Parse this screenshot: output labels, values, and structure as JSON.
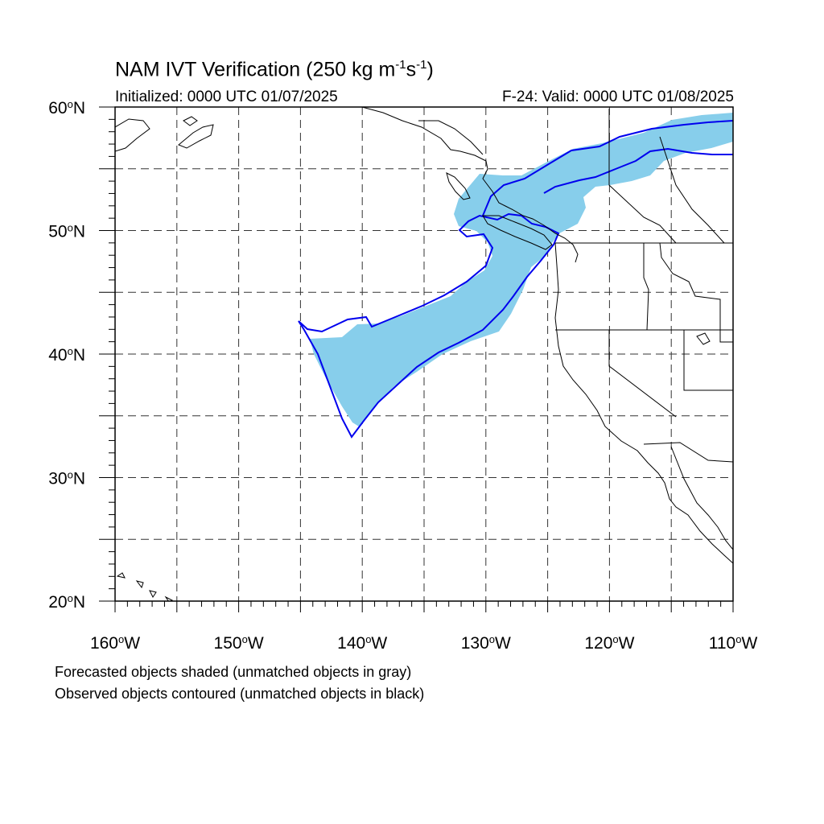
{
  "title": {
    "text": "NAM IVT Verification (250 kg m",
    "exp1": "-1",
    "mid": "s",
    "exp2": "-1",
    "end": ")"
  },
  "subtitle_left": "Initialized: 0000 UTC 01/07/2025",
  "subtitle_right": "F-24: Valid: 0000 UTC 01/08/2025",
  "footer": {
    "line1": "Forecasted objects shaded (unmatched objects in gray)",
    "line2": "Observed objects contoured (unmatched objects in black)"
  },
  "map": {
    "lon_range": [
      -160,
      -110
    ],
    "lat_range": [
      20,
      60
    ],
    "lat_labels": [
      {
        "value": 60,
        "text": "60",
        "suffix": "N"
      },
      {
        "value": 50,
        "text": "50",
        "suffix": "N"
      },
      {
        "value": 40,
        "text": "40",
        "suffix": "N"
      },
      {
        "value": 30,
        "text": "30",
        "suffix": "N"
      },
      {
        "value": 20,
        "text": "20",
        "suffix": "N"
      }
    ],
    "lon_labels": [
      {
        "value": -160,
        "text": "160",
        "suffix": "W"
      },
      {
        "value": -150,
        "text": "150",
        "suffix": "W"
      },
      {
        "value": -140,
        "text": "140",
        "suffix": "W"
      },
      {
        "value": -130,
        "text": "130",
        "suffix": "W"
      },
      {
        "value": -120,
        "text": "120",
        "suffix": "W"
      },
      {
        "value": -110,
        "text": "110",
        "suffix": "W"
      }
    ],
    "forecast_fill_color": "#87ceeb",
    "observed_contour_color": "#0000ee"
  }
}
